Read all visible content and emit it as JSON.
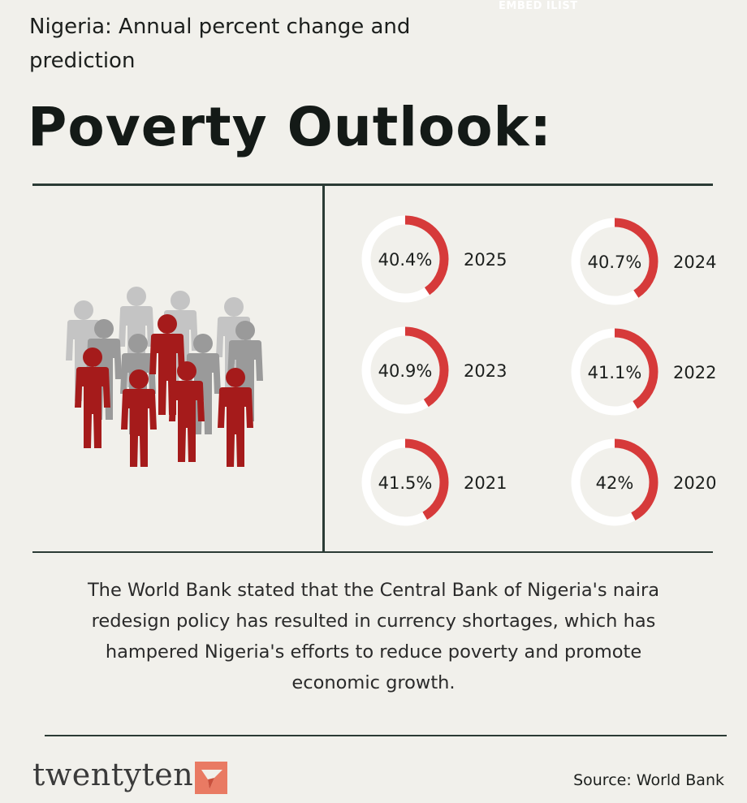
{
  "header": {
    "embed_mark": "EMBED ILIST",
    "subtitle": "Nigeria: Annual percent change and prediction",
    "title": "Poverty Outlook:"
  },
  "colors": {
    "accent": "#d63a3a",
    "ring_track": "#ffffff",
    "figure_red": "#a51b1b",
    "figure_gray": "#9a9a9a",
    "rule": "#2b3b35",
    "background": "#f1f0eb"
  },
  "illustration": {
    "icon": "crowd-people-icon"
  },
  "chart_data": {
    "type": "donut-grid",
    "unit": "%",
    "items": [
      {
        "year": "2025",
        "value": 40.4,
        "label": "40.4%"
      },
      {
        "year": "2024",
        "value": 40.7,
        "label": "40.7%"
      },
      {
        "year": "2023",
        "value": 40.9,
        "label": "40.9%"
      },
      {
        "year": "2022",
        "value": 41.1,
        "label": "41.1%"
      },
      {
        "year": "2021",
        "value": 41.5,
        "label": "41.5%"
      },
      {
        "year": "2020",
        "value": 42,
        "label": "42%"
      }
    ]
  },
  "note": "The World Bank stated that the Central Bank of Nigeria's naira redesign policy has resulted in currency shortages, which has hampered Nigeria's efforts to reduce poverty and promote economic growth.",
  "footer": {
    "brand": "twentyten",
    "brand_logo_icon": "twentyten-logo-icon",
    "source": "Source: World Bank"
  }
}
